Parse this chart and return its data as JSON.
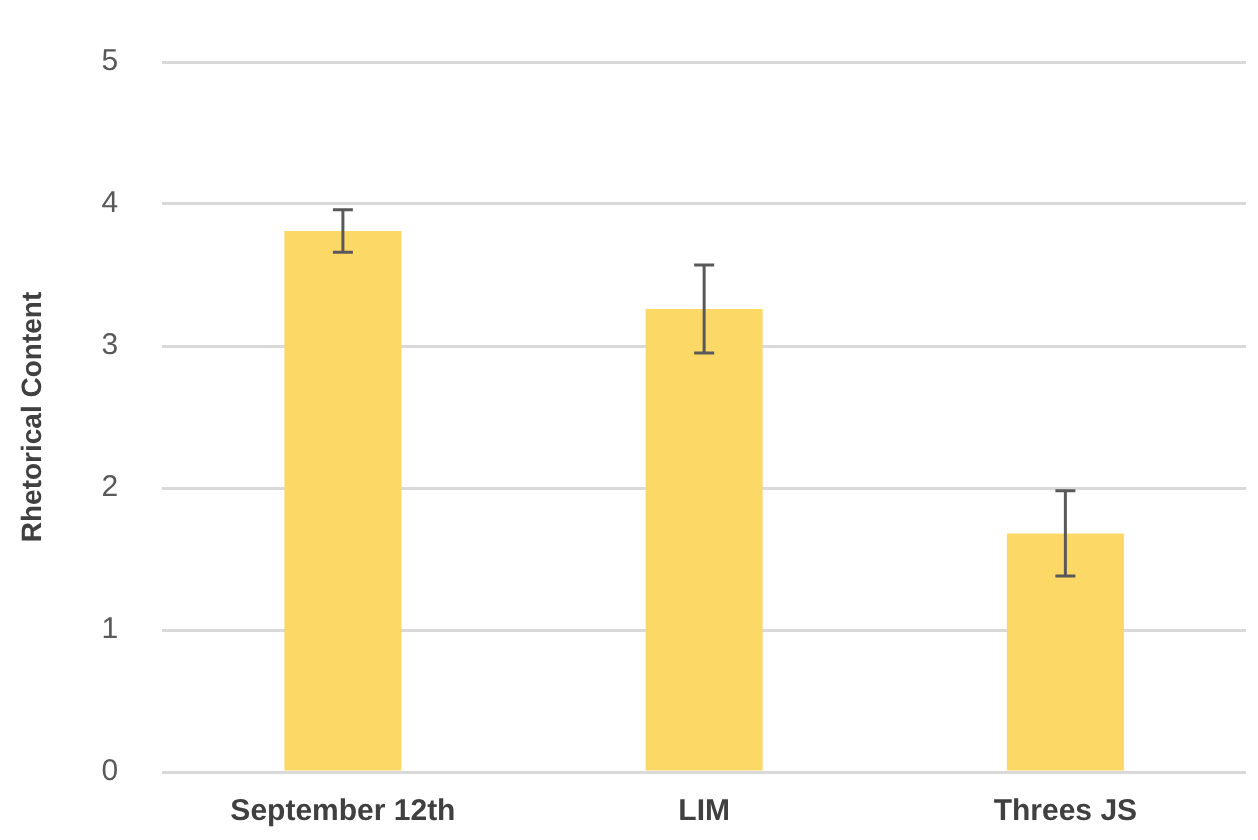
{
  "chart_data": {
    "type": "bar",
    "ylabel": "Rhetorical Content",
    "categories": [
      "September 12th",
      "LIM",
      "Threes JS"
    ],
    "values": [
      3.81,
      3.26,
      1.68
    ],
    "errors": [
      0.15,
      0.31,
      0.3
    ],
    "color": "#fcd867",
    "ylim": [
      0,
      5
    ],
    "yticks": [
      0,
      1,
      2,
      3,
      4,
      5
    ],
    "grid": "y",
    "legend": false
  }
}
